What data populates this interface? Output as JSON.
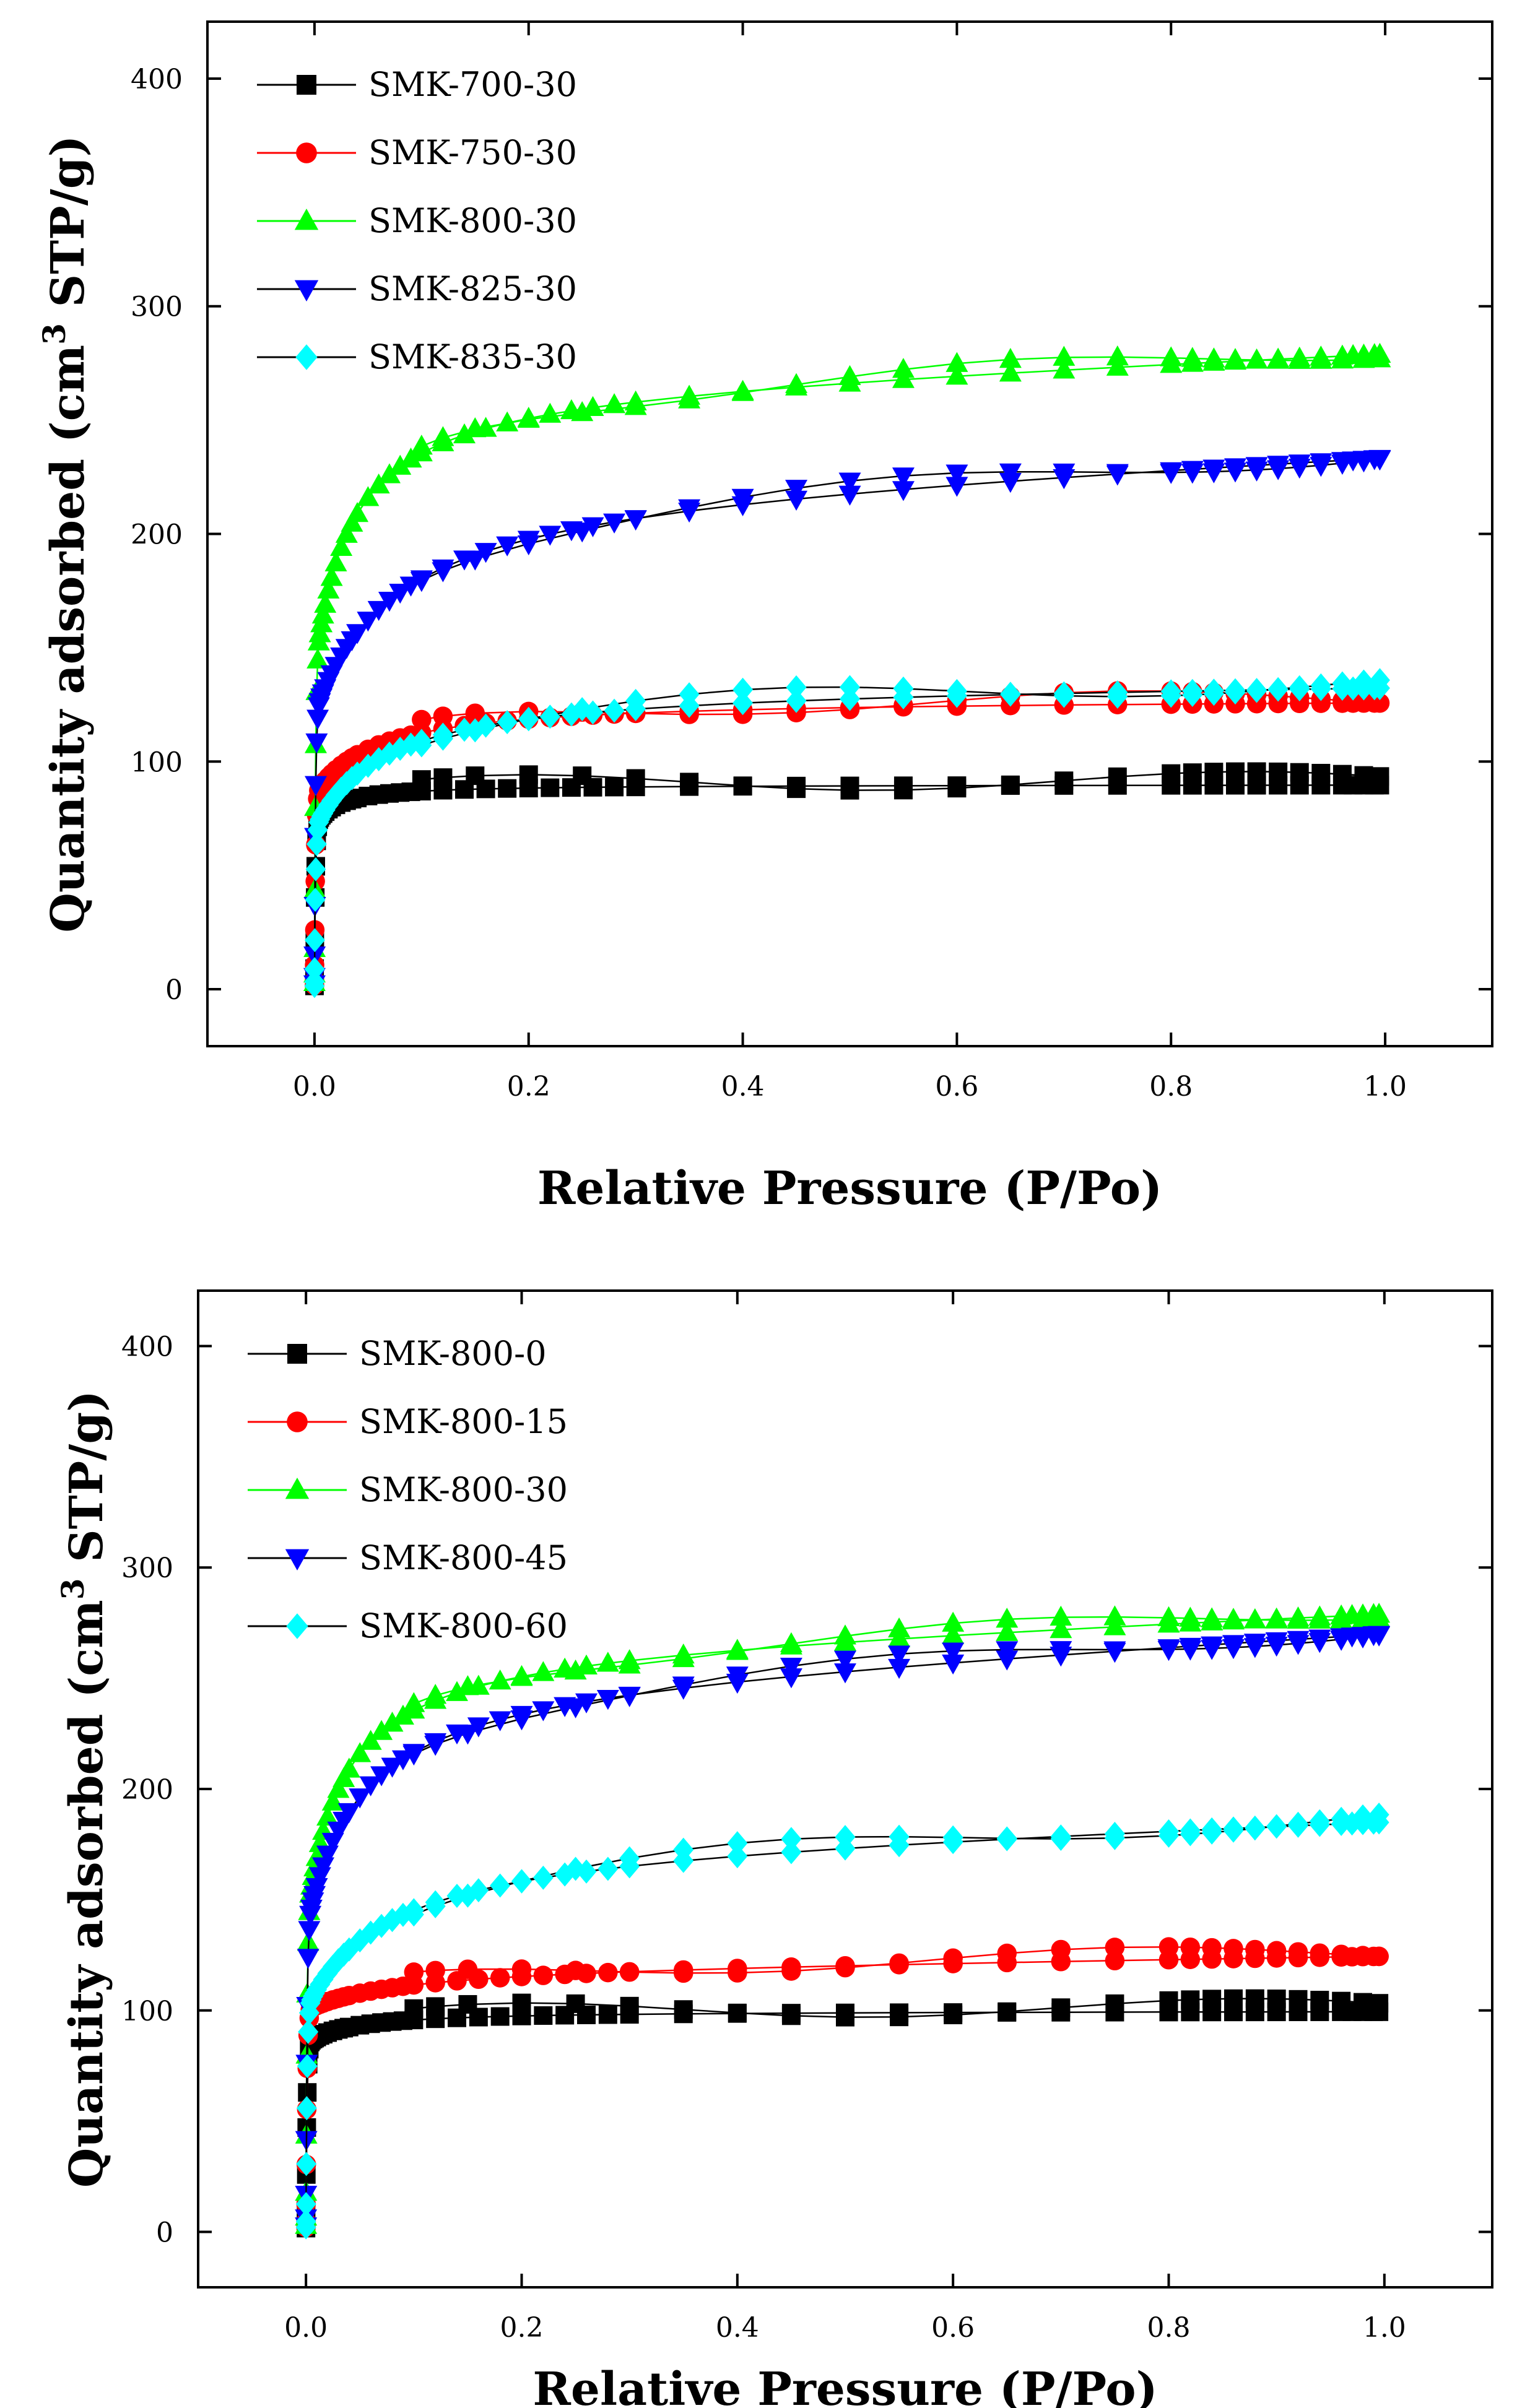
{
  "chart_data": [
    {
      "type": "scatter",
      "xlabel": "Relative Pressure (P/Po)",
      "ylabel_main": "Quantity adsorbed (cm",
      "ylabel_sup": "3",
      "ylabel_tail": " STP/g)",
      "xlim": [
        -0.1,
        1.1
      ],
      "ylim": [
        -25,
        425
      ],
      "xticks": [
        0.0,
        0.2,
        0.4,
        0.6,
        0.8,
        1.0
      ],
      "xtick_labels": [
        "0.0",
        "0.2",
        "0.4",
        "0.6",
        "0.8",
        "1.0"
      ],
      "yticks": [
        0,
        100,
        200,
        300,
        400
      ],
      "ytick_labels": [
        "0",
        "100",
        "200",
        "300",
        "400"
      ],
      "legend_position": "top-left",
      "series": [
        {
          "name": "SMK-700-30",
          "marker": "square",
          "color": "#000000",
          "line_color": "#000000",
          "params": {
            "q0": 72,
            "qm": 18,
            "b": 50,
            "a": 0
          }
        },
        {
          "name": "SMK-750-30",
          "marker": "circle",
          "color": "#ff0000",
          "line_color": "#ff0000",
          "params": {
            "q0": 85,
            "qm": 43,
            "b": 18,
            "a": 0
          }
        },
        {
          "name": "SMK-800-30",
          "marker": "triangle-up",
          "color": "#00ff00",
          "line_color": "#00ff00",
          "params": {
            "q0": 140,
            "qm": 125,
            "b": 30,
            "a": 18
          }
        },
        {
          "name": "SMK-825-30",
          "marker": "triangle-down",
          "color": "#0000ff",
          "line_color": "#000000",
          "params": {
            "q0": 120,
            "qm": 100,
            "b": 14,
            "a": 20
          }
        },
        {
          "name": "SMK-835-30",
          "marker": "diamond",
          "color": "#00ffff",
          "line_color": "#000000",
          "params": {
            "q0": 70,
            "qm": 63,
            "b": 16,
            "a": 3
          }
        }
      ]
    },
    {
      "type": "scatter",
      "xlabel": "Relative Pressure (P/Po)",
      "ylabel_main": "Quantity adsorbed (cm",
      "ylabel_sup": "3",
      "ylabel_tail": " STP/g)",
      "xlim": [
        -0.1,
        1.1
      ],
      "ylim": [
        -25,
        425
      ],
      "xticks": [
        0.0,
        0.2,
        0.4,
        0.6,
        0.8,
        1.0
      ],
      "xtick_labels": [
        "0.0",
        "0.2",
        "0.4",
        "0.6",
        "0.8",
        "1.0"
      ],
      "yticks": [
        0,
        100,
        200,
        300,
        400
      ],
      "ytick_labels": [
        "0",
        "100",
        "200",
        "300",
        "400"
      ],
      "legend_position": "top-left",
      "series": [
        {
          "name": "SMK-800-0",
          "marker": "square",
          "color": "#000000",
          "line_color": "#000000",
          "params": {
            "q0": 85,
            "qm": 15,
            "b": 25,
            "a": 0
          }
        },
        {
          "name": "SMK-800-15",
          "marker": "circle",
          "color": "#ff0000",
          "line_color": "#ff0000",
          "params": {
            "q0": 100,
            "qm": 20,
            "b": 12,
            "a": 6
          }
        },
        {
          "name": "SMK-800-30",
          "marker": "triangle-up",
          "color": "#00ff00",
          "line_color": "#00ff00",
          "params": {
            "q0": 140,
            "qm": 125,
            "b": 30,
            "a": 18
          }
        },
        {
          "name": "SMK-800-45",
          "marker": "triangle-down",
          "color": "#0000ff",
          "line_color": "#000000",
          "params": {
            "q0": 135,
            "qm": 115,
            "b": 22,
            "a": 25
          }
        },
        {
          "name": "SMK-800-60",
          "marker": "diamond",
          "color": "#00ffff",
          "line_color": "#000000",
          "params": {
            "q0": 100,
            "qm": 75,
            "b": 14,
            "a": 15
          }
        }
      ]
    }
  ]
}
